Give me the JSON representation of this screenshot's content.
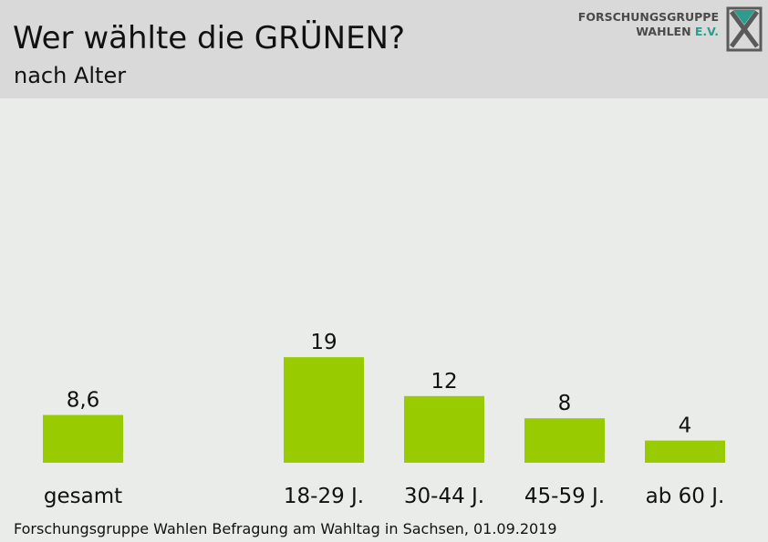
{
  "header": {
    "title": "Wer wählte die GRÜNEN?",
    "subtitle": "nach Alter"
  },
  "logo": {
    "line1": "FORSCHUNGSGRUPPE",
    "line2": "WAHLEN",
    "line2_suffix": "E.V."
  },
  "footer": {
    "source": "Forschungsgruppe Wahlen Befragung am Wahltag in Sachsen, 01.09.2019"
  },
  "colors": {
    "bar": "#99cc00",
    "header_bg": "#d9d9d9",
    "page_bg": "#eaecea"
  },
  "chart_data": {
    "type": "bar",
    "categories": [
      "gesamt",
      "18-29 J.",
      "30-44 J.",
      "45-59 J.",
      "ab 60 J."
    ],
    "values": [
      8.6,
      19,
      12,
      8,
      4
    ],
    "value_labels": [
      "8,6",
      "19",
      "12",
      "8",
      "4"
    ],
    "title": "Wer wählte die GRÜNEN?",
    "subtitle": "nach Alter",
    "xlabel": "",
    "ylabel": "",
    "ylim": [
      0,
      19
    ],
    "grid": false,
    "legend": "none"
  }
}
